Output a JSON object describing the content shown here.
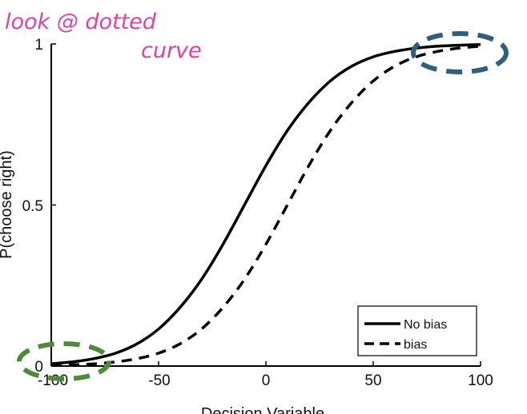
{
  "annotation": {
    "line1": "look @ dotted",
    "line2": "curve",
    "color": "#e040a8"
  },
  "highlight_colors": {
    "upper_right": "#2f5f7e",
    "lower_left": "#4f8a3a"
  },
  "chart_data": {
    "type": "line",
    "title": "",
    "xlabel": "Decision Variable",
    "ylabel": "P(choose right)",
    "xlim": [
      -100,
      100
    ],
    "ylim": [
      0,
      1
    ],
    "xticks": [
      "-100",
      "-50",
      "0",
      "50",
      "100"
    ],
    "yticks": [
      "0",
      "0.5",
      "1"
    ],
    "grid": false,
    "legend_position": "bottom-right",
    "x": [
      -100,
      -90,
      -80,
      -70,
      -60,
      -50,
      -40,
      -30,
      -20,
      -10,
      0,
      10,
      20,
      30,
      40,
      50,
      60,
      70,
      80,
      90,
      100
    ],
    "series": [
      {
        "name": "No bias",
        "style": "solid",
        "color": "#000000",
        "values": [
          0.007,
          0.013,
          0.023,
          0.04,
          0.069,
          0.115,
          0.182,
          0.269,
          0.378,
          0.5,
          0.622,
          0.731,
          0.818,
          0.885,
          0.931,
          0.96,
          0.977,
          0.987,
          0.993,
          0.996,
          0.998
        ]
      },
      {
        "name": "bias",
        "style": "dashed",
        "color": "#000000",
        "values": [
          0.002,
          0.004,
          0.007,
          0.013,
          0.023,
          0.04,
          0.069,
          0.115,
          0.182,
          0.269,
          0.378,
          0.5,
          0.622,
          0.731,
          0.818,
          0.885,
          0.931,
          0.96,
          0.977,
          0.987,
          0.993
        ]
      }
    ]
  }
}
